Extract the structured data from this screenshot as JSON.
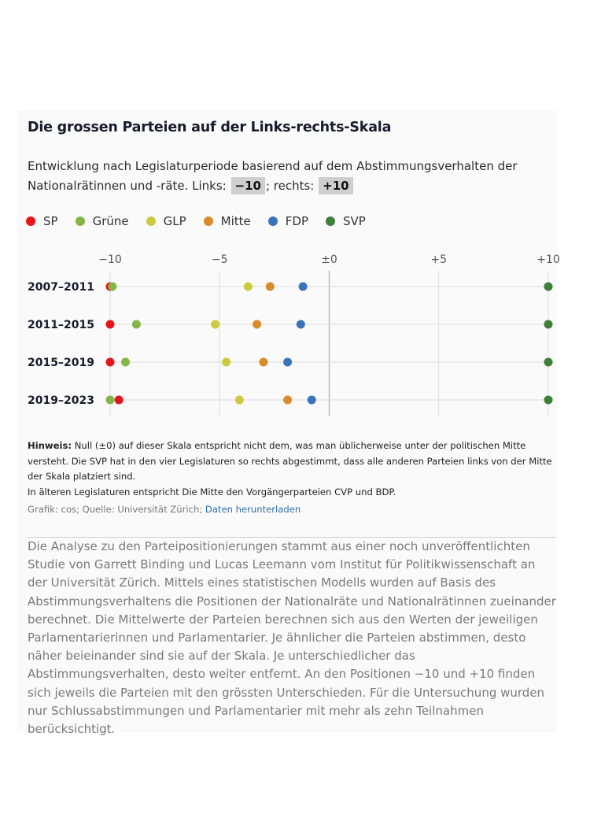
{
  "title": "Die grossen Parteien auf der Links-rechts-Skala",
  "subtitle": {
    "text_before": "Entwicklung nach Legislaturperiode basierend auf dem Abstimmungsverhalten der Nationalrätinnen und -räte. Links: ",
    "left_label": "−10",
    "text_middle": "; rechts: ",
    "right_label": "+10"
  },
  "chart_data": {
    "type": "scatter",
    "x_ticks": [
      "−10",
      "−5",
      "±0",
      "+5",
      "+10"
    ],
    "x_tick_values": [
      -10,
      -5,
      0,
      5,
      10
    ],
    "xlim": [
      -10,
      10
    ],
    "categories": [
      "2007–2011",
      "2011–2015",
      "2015–2019",
      "2019–2023"
    ],
    "series": [
      {
        "name": "SP",
        "color": "#e8141b",
        "values": [
          -10,
          -10,
          -10,
          -9.6
        ]
      },
      {
        "name": "Grüne",
        "color": "#84b547",
        "values": [
          -9.9,
          -8.8,
          -9.3,
          -10
        ]
      },
      {
        "name": "GLP",
        "color": "#cacb3d",
        "values": [
          -3.7,
          -5.2,
          -4.7,
          -4.1
        ]
      },
      {
        "name": "Mitte",
        "color": "#d98b2b",
        "values": [
          -2.7,
          -3.3,
          -3.0,
          -1.9
        ]
      },
      {
        "name": "FDP",
        "color": "#3b73b8",
        "values": [
          -1.2,
          -1.3,
          -1.9,
          -0.8
        ]
      },
      {
        "name": "SVP",
        "color": "#3f7f3a",
        "values": [
          10,
          10,
          10,
          10
        ]
      }
    ],
    "grid": true,
    "legend_position": "top-left"
  },
  "note": {
    "label": "Hinweis:",
    "text": "Null (±0) auf dieser Skala entspricht nicht dem, was man üblicherweise unter der politischen Mitte versteht. Die SVP hat in den vier Legislaturen so rechts abgestimmt, dass alle anderen Parteien links von der Mitte der Skala platziert sind.",
    "text2": "In älteren Legislaturen entspricht Die Mitte den Vorgängerparteien CVP und BDP."
  },
  "source": {
    "text": "Grafik: cos; Quelle: Universität Zürich; ",
    "link": "Daten herunterladen"
  },
  "body_text": "Die Analyse zu den Parteipositionierungen stammt aus einer noch unveröffentlichten Studie von Garrett Binding und Lucas Leemann vom Institut für Politikwissenschaft an der Universität Zürich. Mittels eines statistischen Modells wurden auf Basis des Abstimmungsverhaltens die Positionen der Nationalräte und Nationalrätinnen zueinander berechnet. Die Mittelwerte der Parteien berechnen sich aus den Werten der jeweiligen Parlamentarierinnen und Parlamentarier. Je ähnlicher die Parteien abstimmen, desto näher beieinander sind sie auf der Skala. Je unterschiedlicher das Abstimmungsverhalten, desto weiter entfernt. An den Positionen −10 und +10 finden sich jeweils die Parteien mit den grössten Unterschieden. Für die Untersuchung wurden nur Schlussabstimmungen und Parlamentarier mit mehr als zehn Teilnahmen berücksichtigt."
}
